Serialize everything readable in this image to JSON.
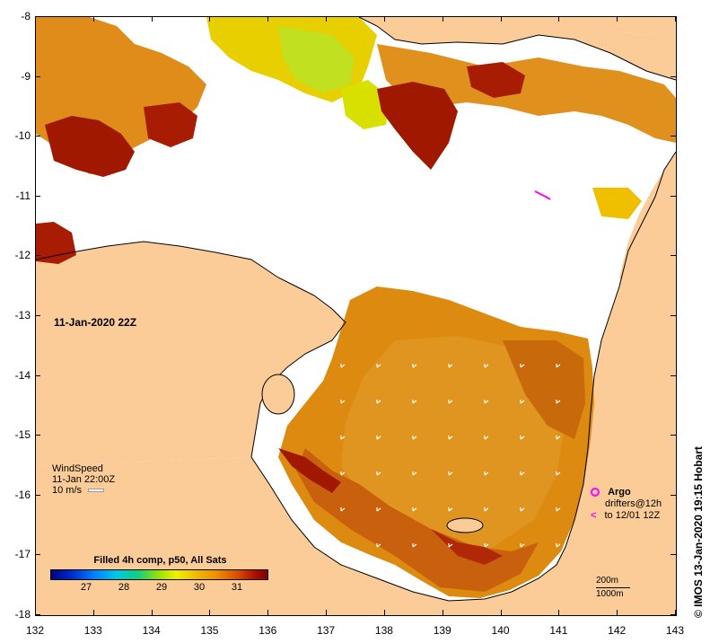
{
  "map": {
    "timestamp": "11-Jan-2020 22Z",
    "x_axis": {
      "labels": [
        "132",
        "133",
        "134",
        "135",
        "136",
        "137",
        "138",
        "139",
        "140",
        "141",
        "142",
        "143"
      ]
    },
    "y_axis": {
      "labels": [
        "-8",
        "-9",
        "-10",
        "-11",
        "-12",
        "-13",
        "-14",
        "-15",
        "-16",
        "-17",
        "-18"
      ]
    },
    "colors": {
      "land": "#fbcb98",
      "nodata": "#ffffff",
      "coast": "#000000",
      "argo": "#ff00ff"
    }
  },
  "wind": {
    "title": "WindSpeed",
    "time": "11-Jan 22:00Z",
    "scale": "10 m/s"
  },
  "argo": {
    "title": "Argo",
    "line1": "drifters@12h",
    "line2": "to 12/01 12Z"
  },
  "depth_scale": {
    "contour1": "200m",
    "contour2": "1000m"
  },
  "colorbar": {
    "title": "Filled 4h comp, p50, All Sats",
    "ticks": [
      "27",
      "28",
      "29",
      "30",
      "31"
    ]
  },
  "credit": "© IMOS 13-Jan-2020 19:15 Hobart"
}
